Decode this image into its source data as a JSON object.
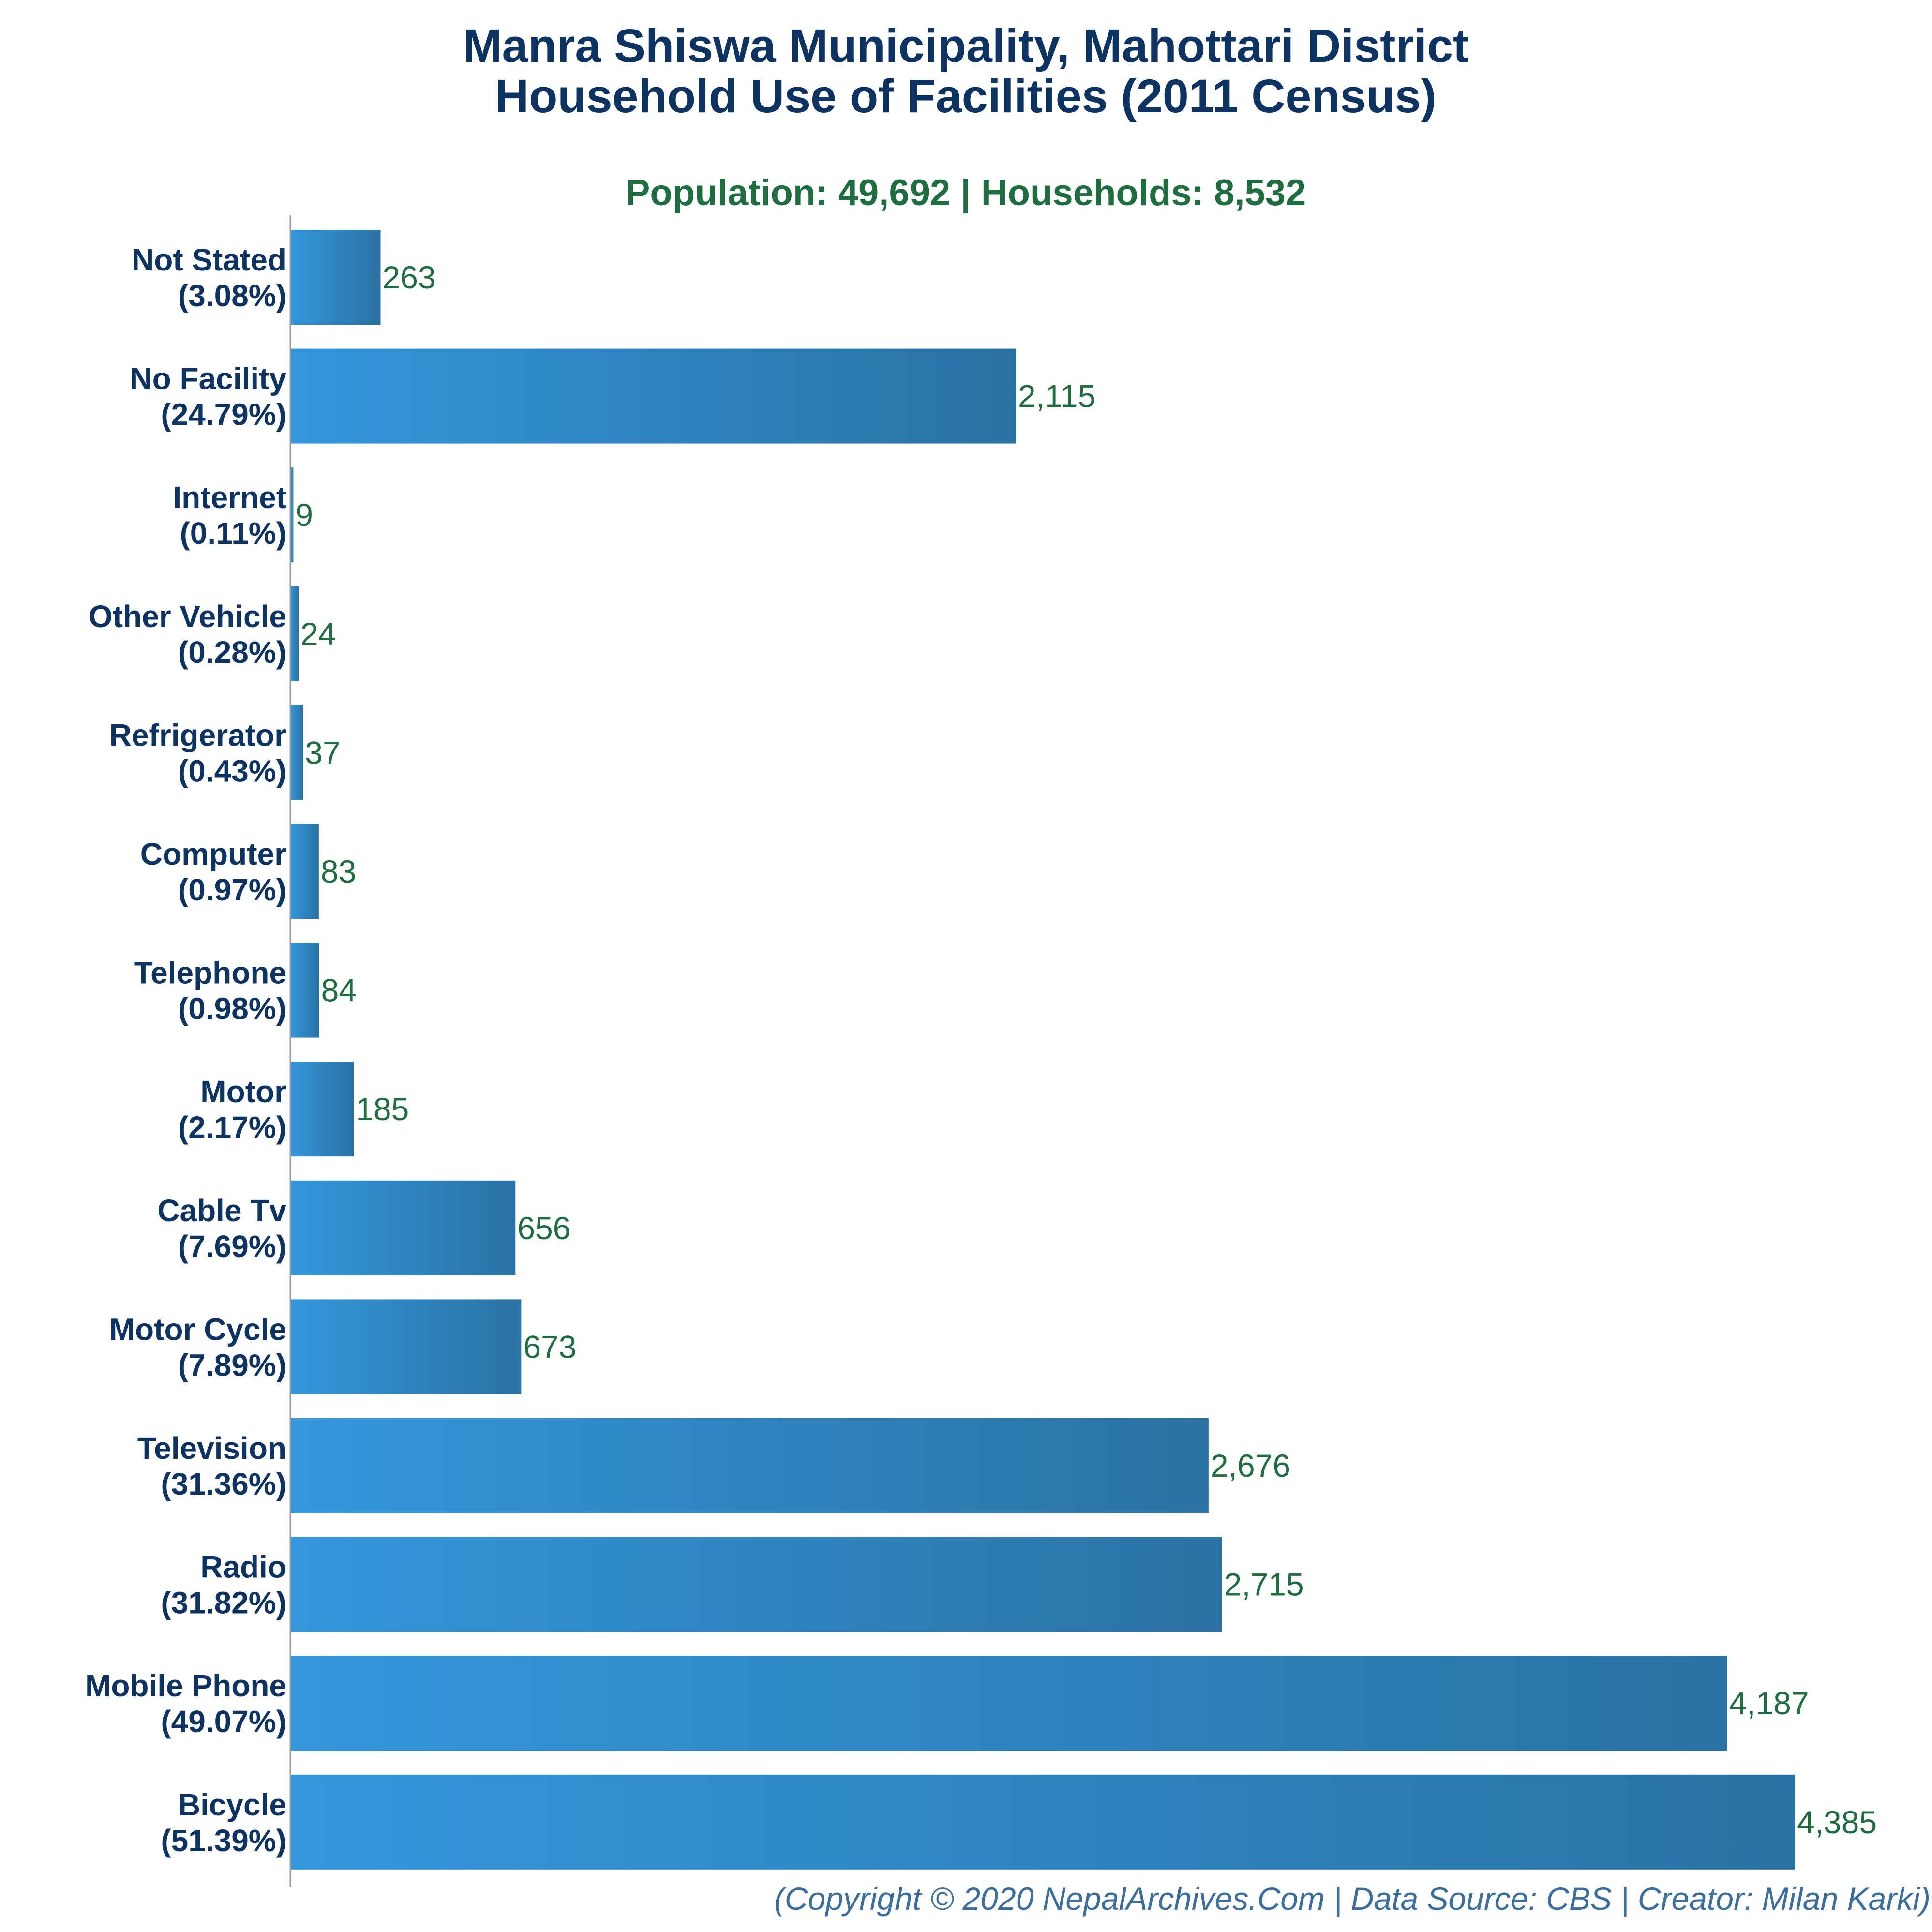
{
  "title_line1": "Manra Shiswa Municipality, Mahottari District",
  "title_line2": "Household Use of Facilities (2011 Census)",
  "subtitle": "Population: 49,692 | Households: 8,532",
  "credit": "(Copyright © 2020 NepalArchives.Com | Data Source: CBS | Creator: Milan Karki)",
  "colors": {
    "bar_light": "#3497dc",
    "bar_dark": "#2a72a3",
    "title": "#0d3363",
    "value_text": "#1e6e3f",
    "credit_text": "#3a6e9e",
    "axis": "#999999"
  },
  "chart_data": {
    "type": "bar",
    "orientation": "horizontal",
    "categories": [
      "Not Stated",
      "No Facility",
      "Internet",
      "Other Vehicle",
      "Refrigerator",
      "Computer",
      "Telephone",
      "Motor",
      "Cable Tv",
      "Motor Cycle",
      "Television",
      "Radio",
      "Mobile Phone",
      "Bicycle"
    ],
    "percent_labels": [
      "(3.08%)",
      "(24.79%)",
      "(0.11%)",
      "(0.28%)",
      "(0.43%)",
      "(0.97%)",
      "(0.98%)",
      "(2.17%)",
      "(7.69%)",
      "(7.89%)",
      "(31.36%)",
      "(31.82%)",
      "(49.07%)",
      "(51.39%)"
    ],
    "values": [
      263,
      2115,
      9,
      24,
      37,
      83,
      84,
      185,
      656,
      673,
      2676,
      2715,
      4187,
      4385
    ],
    "value_labels": [
      "263",
      "2,115",
      "9",
      "24",
      "37",
      "83",
      "84",
      "185",
      "656",
      "673",
      "2,676",
      "2,715",
      "4,187",
      "4,385"
    ],
    "xlim": [
      0,
      4385
    ],
    "grid": false,
    "legend": "none"
  }
}
